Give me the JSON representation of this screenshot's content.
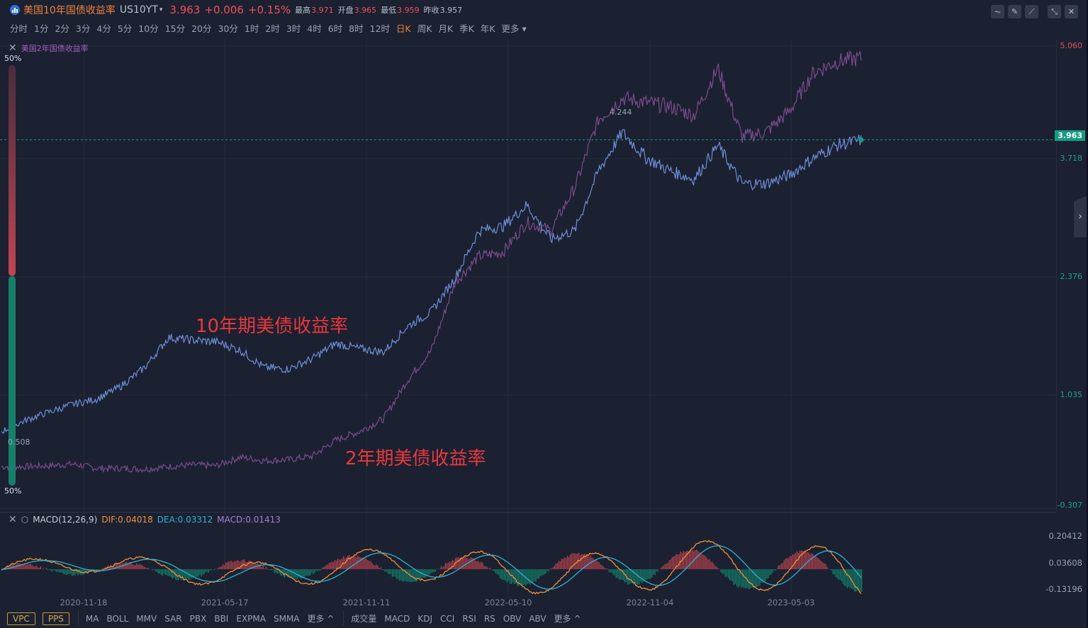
{
  "header": {
    "title": "美国10年国债收益率",
    "symbol": "US10YT",
    "price": "3.963",
    "change": "+0.006",
    "change_pct": "+0.15%",
    "high_label": "最高",
    "high": "3.971",
    "open_label": "开盘",
    "open": "3.965",
    "low_label": "最低",
    "low": "3.959",
    "prev_close_label": "昨收",
    "prev_close": "3.957"
  },
  "toolbar_icons": [
    "line-style-icon",
    "draw-pencil-icon",
    "chart-type-icon",
    "compress-icon",
    "close-icon"
  ],
  "periods": [
    "分时",
    "1分",
    "2分",
    "3分",
    "4分",
    "5分",
    "10分",
    "15分",
    "20分",
    "30分",
    "1时",
    "2时",
    "3时",
    "4时",
    "6时",
    "8时",
    "12时",
    "日K",
    "周K",
    "月K",
    "季K",
    "年K",
    "更多"
  ],
  "active_period": "日K",
  "overlay": {
    "legend": "美国2年国债收益率",
    "pct_top": "50%",
    "pct_bottom": "50%",
    "label_max": "4.244",
    "label_min": "0.508",
    "annotation_10y": "10年期美债收益率",
    "annotation_2y": "2年期美债收益率"
  },
  "colors": {
    "bg": "#1b2130",
    "line_10y": "#6c8fd8",
    "line_2y": "#7a4c8e",
    "up": "#e0505a",
    "down": "#139e84",
    "dif": "#f0913a",
    "dea": "#2bb3d8"
  },
  "macd": {
    "name": "MACD(12,26,9)",
    "dif": "DIF:0.04018",
    "dea": "DEA:0.03312",
    "macd": "MACD:0.01413",
    "axis": [
      "0.20412",
      "0.03608",
      "-0.13196"
    ]
  },
  "bottom": {
    "buttons": [
      "VPC",
      "PPS"
    ],
    "main_indicators": [
      "MA",
      "BOLL",
      "MMV",
      "SAR",
      "PBX",
      "BBI",
      "EXPMA",
      "SMMA",
      "更多 ^"
    ],
    "sub_indicators": [
      "成交量",
      "MACD",
      "KDJ",
      "CCI",
      "RSI",
      "RS",
      "OBV",
      "ABV",
      "更多 ^"
    ]
  },
  "chart_data": [
    {
      "type": "line",
      "title": "美国10年国债收益率 US10YT (日K) vs 美国2年国债收益率",
      "xlabel": "",
      "ylabel": "Yield (%)",
      "x_ticks": [
        "2020-11-18",
        "2021-05-17",
        "2021-11-11",
        "2022-05-10",
        "2022-11-04",
        "2023-05-03"
      ],
      "y_ticks": [
        "5.060",
        "3.963",
        "3.718",
        "2.376",
        "1.035",
        "-0.307"
      ],
      "ylim": [
        -0.307,
        5.2
      ],
      "current_value": 3.963,
      "annotations": [
        "4.244 (high)",
        "0.508 (low)",
        "10年期美债收益率",
        "2年期美债收益率"
      ],
      "x": [
        "2020-08",
        "2020-09",
        "2020-10",
        "2020-11",
        "2020-12",
        "2021-01",
        "2021-02",
        "2021-03",
        "2021-04",
        "2021-05",
        "2021-06",
        "2021-07",
        "2021-08",
        "2021-09",
        "2021-10",
        "2021-11",
        "2021-12",
        "2022-01",
        "2022-02",
        "2022-03",
        "2022-04",
        "2022-05",
        "2022-06",
        "2022-07",
        "2022-08",
        "2022-09",
        "2022-10",
        "2022-11",
        "2022-12",
        "2023-01",
        "2023-02",
        "2023-03",
        "2023-04",
        "2023-05",
        "2023-06",
        "2023-07",
        "2023-08"
      ],
      "series": [
        {
          "name": "美国10年国债收益率",
          "values": [
            0.55,
            0.68,
            0.78,
            0.87,
            0.93,
            1.08,
            1.3,
            1.65,
            1.62,
            1.6,
            1.5,
            1.3,
            1.28,
            1.4,
            1.58,
            1.52,
            1.48,
            1.78,
            1.95,
            2.35,
            2.9,
            2.95,
            3.2,
            2.8,
            2.9,
            3.6,
            4.05,
            3.75,
            3.6,
            3.5,
            3.9,
            3.45,
            3.45,
            3.55,
            3.75,
            3.9,
            3.96
          ]
        },
        {
          "name": "美国2年国债收益率",
          "values": [
            0.14,
            0.14,
            0.15,
            0.17,
            0.12,
            0.12,
            0.11,
            0.14,
            0.16,
            0.15,
            0.25,
            0.21,
            0.22,
            0.26,
            0.45,
            0.55,
            0.7,
            1.15,
            1.5,
            2.3,
            2.6,
            2.65,
            3.0,
            2.9,
            3.4,
            4.2,
            4.45,
            4.4,
            4.35,
            4.25,
            4.8,
            4.0,
            4.05,
            4.3,
            4.75,
            4.88,
            4.92
          ]
        }
      ]
    },
    {
      "type": "line",
      "title": "MACD(12,26,9)",
      "y_ticks": [
        "0.20412",
        "0.03608",
        "-0.13196"
      ],
      "series": [
        {
          "name": "DIF",
          "last": 0.04018
        },
        {
          "name": "DEA",
          "last": 0.03312
        },
        {
          "name": "MACD",
          "last": 0.01413
        }
      ]
    }
  ]
}
